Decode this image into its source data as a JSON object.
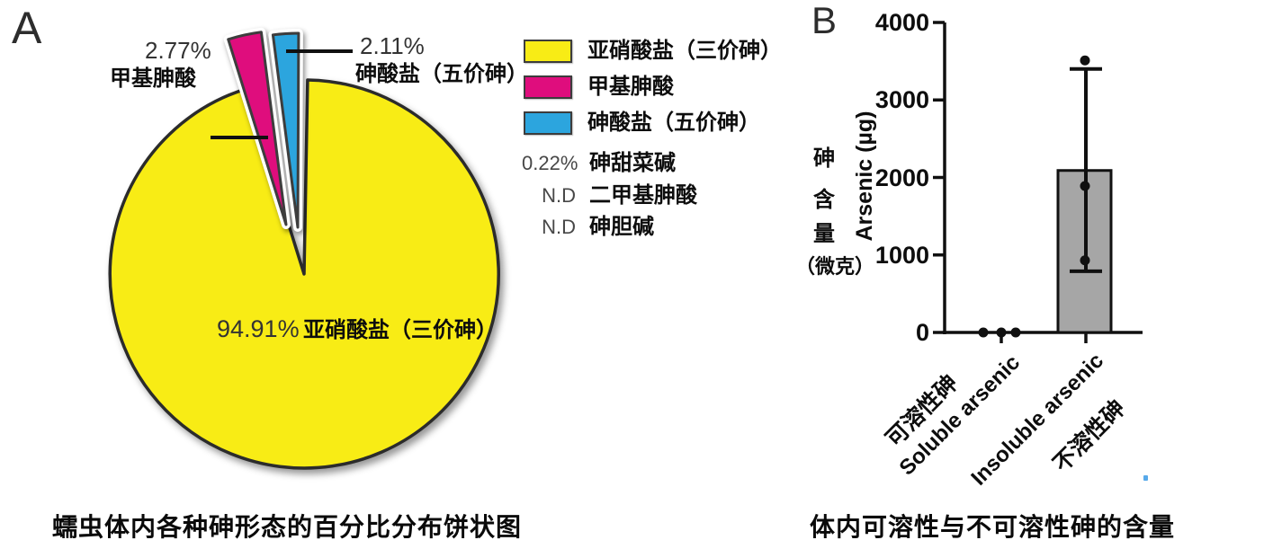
{
  "panelA": {
    "label": "A",
    "caption": "蠕虫体内各种砷形态的百分比分布饼状图",
    "center_label": {
      "pct": "94.91%",
      "name": "亚硝酸盐（三价砷）"
    },
    "callouts": [
      {
        "pct": "2.77%",
        "name": "甲基胂酸"
      },
      {
        "pct": "2.11%",
        "name": "砷酸盐（五价砷）"
      }
    ],
    "legend": {
      "items": [
        {
          "prefix": "",
          "label": "亚硝酸盐（三价砷）",
          "swatch": "#F8EC15"
        },
        {
          "prefix": "",
          "label": "甲基胂酸",
          "swatch": "#DF0D7D"
        },
        {
          "prefix": "",
          "label": "砷酸盐（五价砷）",
          "swatch": "#2CA5DE"
        },
        {
          "prefix": "0.22%",
          "label": "砷甜菜碱",
          "swatch": null
        },
        {
          "prefix": "N.D",
          "label": "二甲基胂酸",
          "swatch": null
        },
        {
          "prefix": "N.D",
          "label": "砷胆碱",
          "swatch": null
        }
      ]
    }
  },
  "panelB": {
    "label": "B",
    "caption": "体内可溶性与不可溶性砷的含量",
    "ylabel": "Arsenic (µg)",
    "ylabel_zh_chars": [
      "砷",
      "含",
      "量"
    ],
    "ylabel_zh_unit": "（微克）",
    "xlabels": {
      "zh": [
        "可溶性砷",
        "不溶性砷"
      ],
      "en": [
        "Soluble arsenic",
        "Insoluble arsenic"
      ]
    }
  },
  "chart_data": [
    {
      "type": "pie",
      "title": "蠕虫体内各种砷形态的百分比分布饼状图",
      "slices": [
        {
          "label": "亚硝酸盐（三价砷）",
          "pct": 94.91,
          "color": "#F8EC15",
          "exploded": false
        },
        {
          "label": "甲基胂酸",
          "pct": 2.77,
          "color": "#DF0D7D",
          "exploded": true
        },
        {
          "label": "砷酸盐（五价砷）",
          "pct": 2.11,
          "color": "#2CA5DE",
          "exploded": true
        },
        {
          "label": "砷甜菜碱",
          "pct": 0.22,
          "color": null,
          "exploded": false
        },
        {
          "label": "二甲基胂酸",
          "pct": "N.D",
          "color": null,
          "exploded": false
        },
        {
          "label": "砷胆碱",
          "pct": "N.D",
          "color": null,
          "exploded": false
        }
      ],
      "legend_position": "right"
    },
    {
      "type": "bar",
      "title": "体内可溶性与不可溶性砷的含量",
      "ylabel": "Arsenic (µg)",
      "ylim": [
        0,
        4000
      ],
      "yticks": [
        0,
        1000,
        2000,
        3000,
        4000
      ],
      "categories": [
        "Soluble arsenic",
        "Insoluble arsenic"
      ],
      "categories_zh": [
        "可溶性砷",
        "不溶性砷"
      ],
      "bar_means": [
        0,
        2090
      ],
      "error_bars": [
        null,
        {
          "low": 790,
          "high": 3400
        }
      ],
      "points": [
        [
          0,
          0,
          0
        ],
        [
          3510,
          1890,
          930
        ]
      ],
      "bar_color": "#A6A6A6",
      "grid": false,
      "legend_position": "none"
    }
  ]
}
